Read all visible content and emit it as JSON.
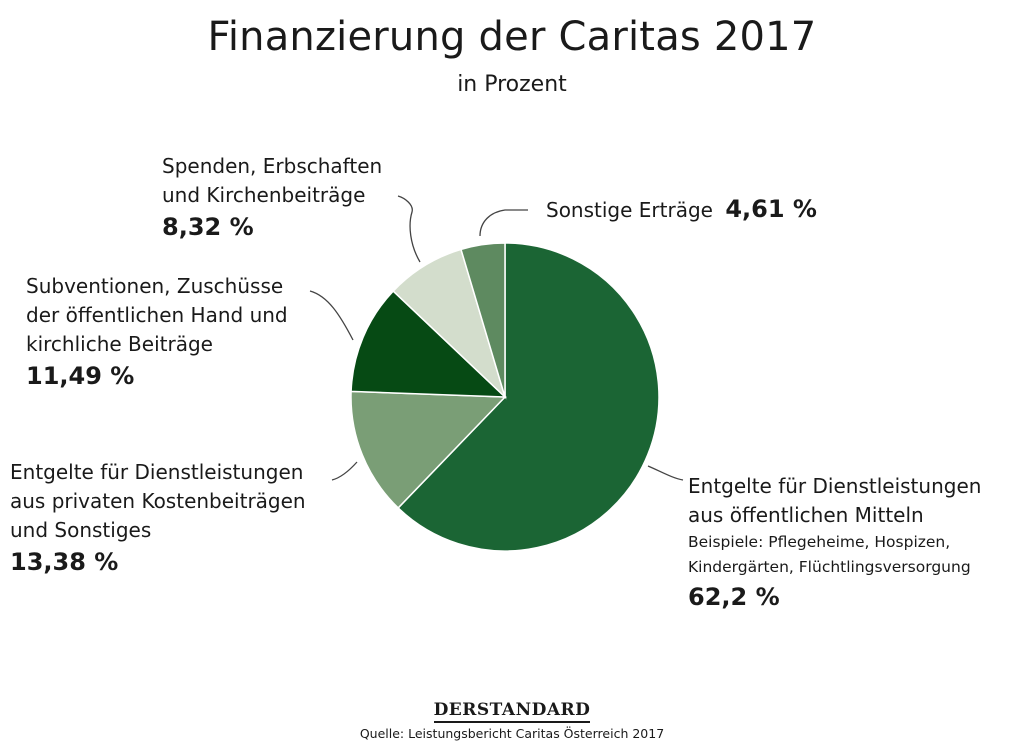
{
  "chart_data": {
    "type": "pie",
    "title": "Finanzierung der Caritas 2017",
    "subtitle": "in Prozent",
    "slices": [
      {
        "label_lines": [
          "Entgelte für Dienstleistungen",
          "aus öffentlichen Mitteln"
        ],
        "note_lines": [
          "Beispiele: Pflegeheime, Hospizen,",
          "Kindergärten, Flüchtlingsversorgung"
        ],
        "value": 62.2,
        "value_label": "62,2 %",
        "color": "#1b6534"
      },
      {
        "label_lines": [
          "Entgelte für Dienstleistungen",
          "aus privaten Kostenbeiträgen",
          "und Sonstiges"
        ],
        "value": 13.38,
        "value_label": "13,38 %",
        "color": "#7a9e76"
      },
      {
        "label_lines": [
          "Subventionen, Zuschüsse",
          "der öffentlichen Hand und",
          "kirchliche Beiträge"
        ],
        "value": 11.49,
        "value_label": "11,49 %",
        "color": "#064a14"
      },
      {
        "label_lines": [
          "Spenden, Erbschaften",
          "und Kirchenbeiträge"
        ],
        "value": 8.32,
        "value_label": "8,32 %",
        "color": "#d3ddcc"
      },
      {
        "label_lines": [
          "Sonstige Erträge"
        ],
        "value": 4.61,
        "value_label": "4,61 %",
        "color": "#5e8a60"
      }
    ]
  },
  "footer": {
    "logo": "DERSTANDARD",
    "source": "Quelle: Leistungsbericht Caritas Österreich 2017"
  }
}
